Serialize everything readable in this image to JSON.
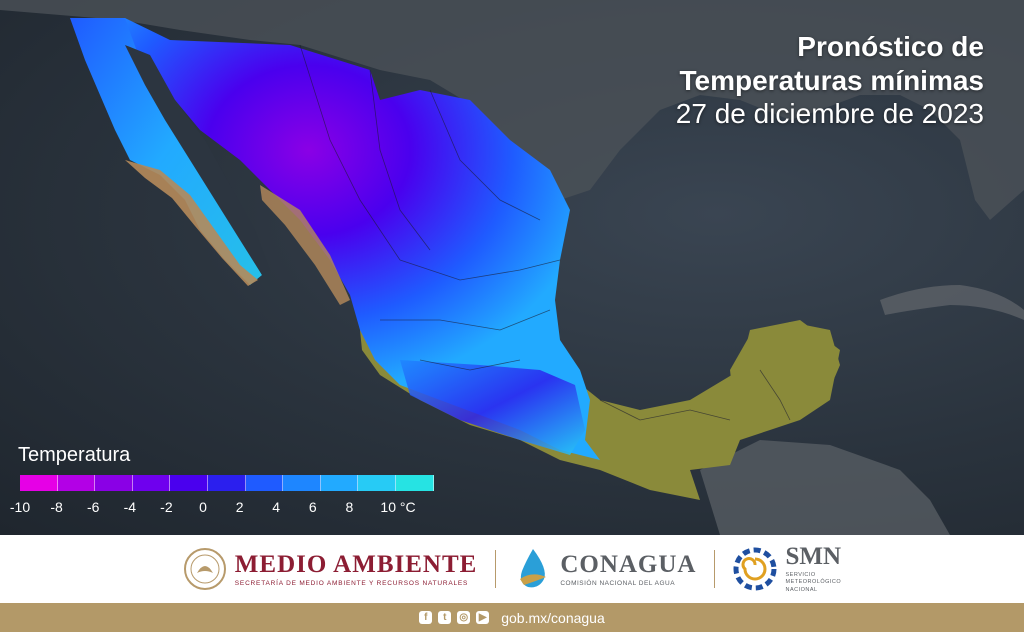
{
  "title": {
    "line1": "Pronóstico de",
    "line2": "Temperaturas mínimas",
    "line3": "27 de diciembre de 2023"
  },
  "legend": {
    "title": "Temperatura",
    "colors": [
      "#e600e6",
      "#b300e6",
      "#8a00e6",
      "#6f00ee",
      "#4a00ee",
      "#2b1fee",
      "#1f5bff",
      "#1e86ff",
      "#22aaff",
      "#27cbf5",
      "#26e3e3"
    ],
    "ticks": [
      "-10",
      "-8",
      "-6",
      "-4",
      "-2",
      "0",
      "2",
      "4",
      "6",
      "8",
      "10 °C"
    ]
  },
  "footer": {
    "medio_ambiente": {
      "name": "MEDIO AMBIENTE",
      "subtitle": "SECRETARÍA DE MEDIO AMBIENTE Y RECURSOS NATURALES"
    },
    "conagua": {
      "name": "CONAGUA",
      "subtitle": "COMISIÓN NACIONAL DEL AGUA"
    },
    "smn": {
      "name": "SMN",
      "subtitle_lines": [
        "SERVICIO",
        "METEOROLÓGICO",
        "NACIONAL"
      ]
    }
  },
  "bottom_bar": {
    "social_icons": [
      "facebook-icon",
      "twitter-icon",
      "instagram-icon",
      "youtube-icon"
    ],
    "url": "gob.mx/conagua"
  }
}
